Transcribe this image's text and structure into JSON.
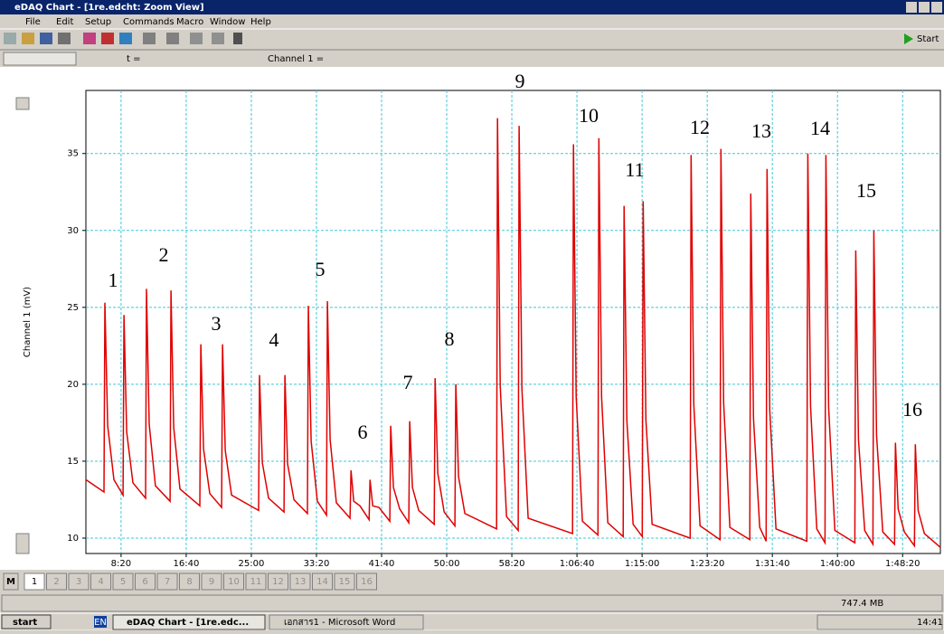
{
  "window": {
    "title": "eDAQ Chart - [1re.edcht: Zoom View]",
    "menu": [
      "File",
      "Edit",
      "Setup",
      "Commands",
      "Macro",
      "Window",
      "Help"
    ],
    "toolbar": {
      "time_label": "t =",
      "channel_label": "Channel 1 =",
      "start": "Start"
    }
  },
  "chart_data": {
    "type": "line",
    "y_label": "Channel 1 (mV)",
    "color": "#e00000",
    "grid": true,
    "xlim": [
      230,
      6790
    ],
    "ylim": [
      9,
      39.1
    ],
    "xticks": [
      {
        "value": 500,
        "label": "8:20"
      },
      {
        "value": 1000,
        "label": "16:40"
      },
      {
        "value": 1500,
        "label": "25:00"
      },
      {
        "value": 2000,
        "label": "33:20"
      },
      {
        "value": 2500,
        "label": "41:40"
      },
      {
        "value": 3000,
        "label": "50:00"
      },
      {
        "value": 3500,
        "label": "58:20"
      },
      {
        "value": 4000,
        "label": "1:06:40"
      },
      {
        "value": 4500,
        "label": "1:15:00"
      },
      {
        "value": 5000,
        "label": "1:23:20"
      },
      {
        "value": 5500,
        "label": "1:31:40"
      },
      {
        "value": 6000,
        "label": "1:40:00"
      },
      {
        "value": 6500,
        "label": "1:48:20"
      }
    ],
    "yticks": [
      10,
      15,
      20,
      25,
      30,
      35
    ],
    "x": [
      230,
      369,
      376,
      397,
      445,
      515,
      522,
      543,
      591,
      688,
      695,
      716,
      764,
      876,
      883,
      904,
      952,
      1105,
      1112,
      1133,
      1181,
      1272,
      1279,
      1300,
      1348,
      1556,
      1563,
      1584,
      1632,
      1751,
      1758,
      1779,
      1827,
      1931,
      1938,
      1959,
      2007,
      2077,
      2084,
      2105,
      2153,
      2258,
      2265,
      2286,
      2334,
      2404,
      2411,
      2432,
      2480,
      2563,
      2570,
      2591,
      2639,
      2709,
      2716,
      2737,
      2785,
      2904,
      2911,
      2932,
      2980,
      3063,
      3070,
      3091,
      3139,
      3383,
      3390,
      3411,
      3459,
      3549,
      3556,
      3577,
      3625,
      3966,
      3973,
      3994,
      4042,
      4161,
      4168,
      4189,
      4237,
      4355,
      4362,
      4383,
      4431,
      4501,
      4508,
      4529,
      4577,
      4869,
      4876,
      4897,
      4945,
      5098,
      5105,
      5126,
      5174,
      5327,
      5334,
      5355,
      5403,
      5452,
      5459,
      5480,
      5528,
      5765,
      5772,
      5793,
      5841,
      5904,
      5911,
      5932,
      5980,
      6133,
      6140,
      6161,
      6209,
      6272,
      6279,
      6300,
      6348,
      6438,
      6445,
      6466,
      6514,
      6591,
      6598,
      6619,
      6667,
      6790
    ],
    "values": [
      13.8,
      13.0,
      25.3,
      17.3,
      13.8,
      12.8,
      24.5,
      16.9,
      13.6,
      12.6,
      26.2,
      17.4,
      13.4,
      12.4,
      26.1,
      17.2,
      13.2,
      12.1,
      22.6,
      15.8,
      12.9,
      12.0,
      22.6,
      15.7,
      12.8,
      11.8,
      20.6,
      14.9,
      12.6,
      11.7,
      20.6,
      14.8,
      12.5,
      11.6,
      25.1,
      16.3,
      12.4,
      11.5,
      25.4,
      16.4,
      12.3,
      11.3,
      14.4,
      12.4,
      12.1,
      11.2,
      13.8,
      12.1,
      12.0,
      11.1,
      17.3,
      13.3,
      11.9,
      11.0,
      17.6,
      13.3,
      11.8,
      10.9,
      20.4,
      14.2,
      11.7,
      10.8,
      20.0,
      14.0,
      11.6,
      10.6,
      37.3,
      19.9,
      11.4,
      10.5,
      36.8,
      19.7,
      11.3,
      10.3,
      35.6,
      19.2,
      11.1,
      10.2,
      36.0,
      19.2,
      11.0,
      10.1,
      31.6,
      17.6,
      10.9,
      10.1,
      31.9,
      17.7,
      10.9,
      10.0,
      34.9,
      18.7,
      10.8,
      9.9,
      35.3,
      18.8,
      10.7,
      9.9,
      32.4,
      17.8,
      10.7,
      9.8,
      34.0,
      18.3,
      10.6,
      9.8,
      35.0,
      18.6,
      10.6,
      9.7,
      34.9,
      18.5,
      10.5,
      9.7,
      28.7,
      16.4,
      10.5,
      9.6,
      30.0,
      16.7,
      10.4,
      9.6,
      16.2,
      11.9,
      10.4,
      9.5,
      16.1,
      11.8,
      10.3,
      9.4
    ],
    "annotations": [
      "1",
      "2",
      "3",
      "4",
      "5",
      "6",
      "7",
      "8",
      "9",
      "10",
      "11",
      "12",
      "13",
      "14",
      "15",
      "16"
    ]
  },
  "tabs": {
    "marker": "M",
    "pages": [
      "1",
      "2",
      "3",
      "4",
      "5",
      "6",
      "7",
      "8",
      "9",
      "10",
      "11",
      "12",
      "13",
      "14",
      "15",
      "16"
    ]
  },
  "status": {
    "memory": "747.4 MB"
  },
  "taskbar": {
    "start": "start",
    "language": "EN",
    "tasks": [
      "eDAQ Chart - [1re.edc...",
      "เอกสาร1 - Microsoft Word"
    ],
    "clock": "14:41"
  }
}
